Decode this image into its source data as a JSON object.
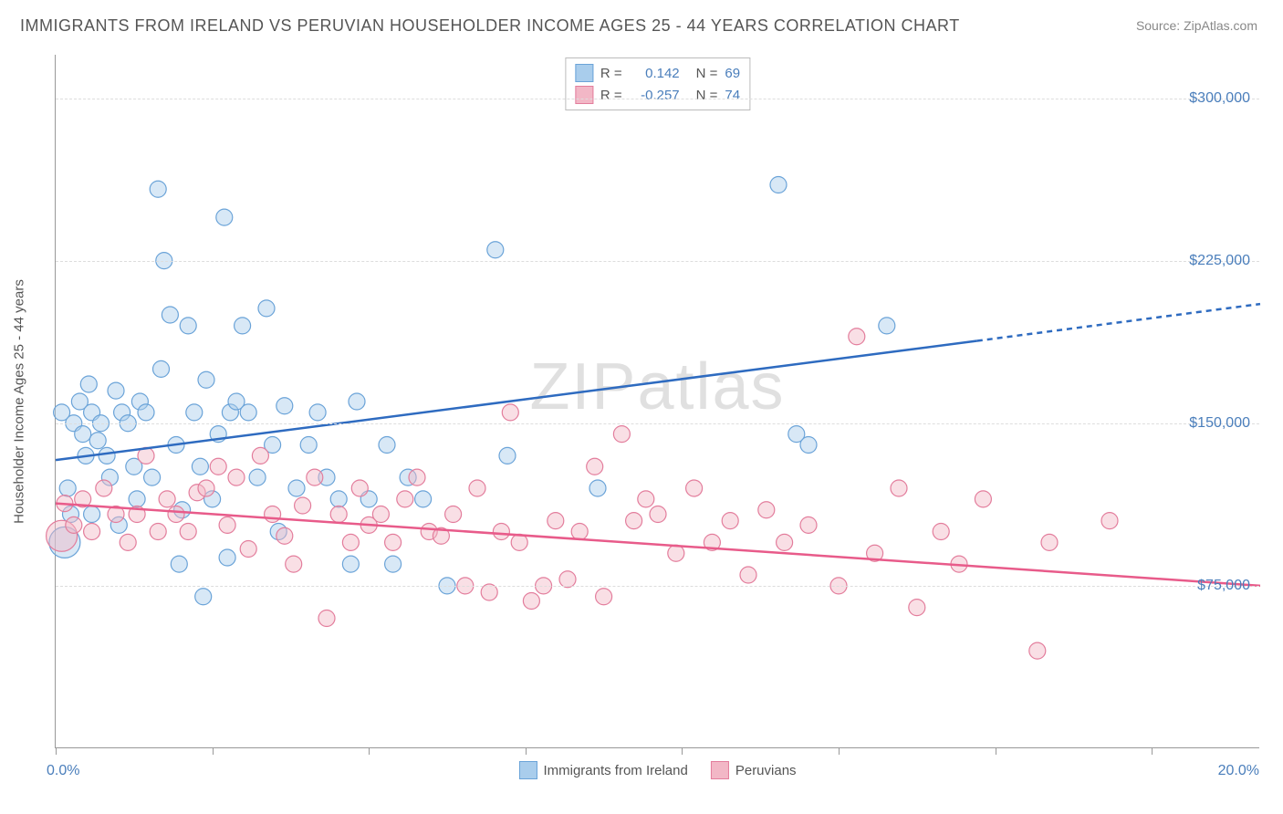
{
  "title": "IMMIGRANTS FROM IRELAND VS PERUVIAN HOUSEHOLDER INCOME AGES 25 - 44 YEARS CORRELATION CHART",
  "source": "Source: ZipAtlas.com",
  "watermark": "ZIPatlas",
  "y_axis_title": "Householder Income Ages 25 - 44 years",
  "chart": {
    "type": "scatter",
    "xlim": [
      0,
      20
    ],
    "ylim": [
      0,
      320000
    ],
    "x_tick_positions": [
      0,
      2.6,
      5.2,
      7.8,
      10.4,
      13.0,
      15.6,
      18.2
    ],
    "x_label_min": "0.0%",
    "x_label_max": "20.0%",
    "y_ticks": [
      {
        "v": 75000,
        "label": "$75,000"
      },
      {
        "v": 150000,
        "label": "$150,000"
      },
      {
        "v": 225000,
        "label": "$225,000"
      },
      {
        "v": 300000,
        "label": "$300,000"
      }
    ],
    "background_color": "#ffffff",
    "grid_color": "#dddddd",
    "marker_radius": 9,
    "marker_radius_large": 17,
    "series": [
      {
        "name": "Immigrants from Ireland",
        "color_fill": "#a9cdec",
        "color_stroke": "#6aa3d8",
        "fill_opacity": 0.45,
        "r_value": "0.142",
        "n_value": "69",
        "trend": {
          "x1": 0,
          "y1": 133000,
          "x2": 15.3,
          "y2": 188000,
          "x2_dash": 20,
          "y2_dash": 205000,
          "color": "#2e6bc0",
          "width": 2.5
        },
        "points": [
          [
            0.1,
            155000
          ],
          [
            0.15,
            95000,
            17
          ],
          [
            0.2,
            120000
          ],
          [
            0.25,
            108000
          ],
          [
            0.3,
            150000
          ],
          [
            0.4,
            160000
          ],
          [
            0.45,
            145000
          ],
          [
            0.5,
            135000
          ],
          [
            0.55,
            168000
          ],
          [
            0.6,
            155000
          ],
          [
            0.6,
            108000
          ],
          [
            0.7,
            142000
          ],
          [
            0.75,
            150000
          ],
          [
            0.85,
            135000
          ],
          [
            0.9,
            125000
          ],
          [
            1.0,
            165000
          ],
          [
            1.05,
            103000
          ],
          [
            1.1,
            155000
          ],
          [
            1.2,
            150000
          ],
          [
            1.3,
            130000
          ],
          [
            1.35,
            115000
          ],
          [
            1.4,
            160000
          ],
          [
            1.5,
            155000
          ],
          [
            1.6,
            125000
          ],
          [
            1.7,
            258000
          ],
          [
            1.75,
            175000
          ],
          [
            1.8,
            225000
          ],
          [
            1.9,
            200000
          ],
          [
            2.0,
            140000
          ],
          [
            2.05,
            85000
          ],
          [
            2.1,
            110000
          ],
          [
            2.2,
            195000
          ],
          [
            2.3,
            155000
          ],
          [
            2.4,
            130000
          ],
          [
            2.45,
            70000
          ],
          [
            2.5,
            170000
          ],
          [
            2.6,
            115000
          ],
          [
            2.7,
            145000
          ],
          [
            2.8,
            245000
          ],
          [
            2.85,
            88000
          ],
          [
            2.9,
            155000
          ],
          [
            3.0,
            160000
          ],
          [
            3.1,
            195000
          ],
          [
            3.2,
            155000
          ],
          [
            3.35,
            125000
          ],
          [
            3.5,
            203000
          ],
          [
            3.6,
            140000
          ],
          [
            3.7,
            100000
          ],
          [
            3.8,
            158000
          ],
          [
            4.0,
            120000
          ],
          [
            4.2,
            140000
          ],
          [
            4.35,
            155000
          ],
          [
            4.5,
            125000
          ],
          [
            4.7,
            115000
          ],
          [
            4.9,
            85000
          ],
          [
            5.0,
            160000
          ],
          [
            5.2,
            115000
          ],
          [
            5.5,
            140000
          ],
          [
            5.6,
            85000
          ],
          [
            5.85,
            125000
          ],
          [
            6.1,
            115000
          ],
          [
            6.5,
            75000
          ],
          [
            7.3,
            230000
          ],
          [
            7.5,
            135000
          ],
          [
            9.0,
            120000
          ],
          [
            12.0,
            260000
          ],
          [
            12.3,
            145000
          ],
          [
            12.5,
            140000
          ],
          [
            13.8,
            195000
          ]
        ]
      },
      {
        "name": "Peruvians",
        "color_fill": "#f2b7c6",
        "color_stroke": "#e37d9c",
        "fill_opacity": 0.45,
        "r_value": "-0.257",
        "n_value": "74",
        "trend": {
          "x1": 0,
          "y1": 113000,
          "x2": 20,
          "y2": 75000,
          "color": "#e85b8a",
          "width": 2.5
        },
        "points": [
          [
            0.1,
            98000,
            17
          ],
          [
            0.15,
            113000
          ],
          [
            0.3,
            103000
          ],
          [
            0.45,
            115000
          ],
          [
            0.6,
            100000
          ],
          [
            0.8,
            120000
          ],
          [
            1.0,
            108000
          ],
          [
            1.2,
            95000
          ],
          [
            1.35,
            108000
          ],
          [
            1.5,
            135000
          ],
          [
            1.7,
            100000
          ],
          [
            1.85,
            115000
          ],
          [
            2.0,
            108000
          ],
          [
            2.2,
            100000
          ],
          [
            2.35,
            118000
          ],
          [
            2.5,
            120000
          ],
          [
            2.7,
            130000
          ],
          [
            2.85,
            103000
          ],
          [
            3.0,
            125000
          ],
          [
            3.2,
            92000
          ],
          [
            3.4,
            135000
          ],
          [
            3.6,
            108000
          ],
          [
            3.8,
            98000
          ],
          [
            3.95,
            85000
          ],
          [
            4.1,
            112000
          ],
          [
            4.3,
            125000
          ],
          [
            4.5,
            60000
          ],
          [
            4.7,
            108000
          ],
          [
            4.9,
            95000
          ],
          [
            5.05,
            120000
          ],
          [
            5.2,
            103000
          ],
          [
            5.4,
            108000
          ],
          [
            5.6,
            95000
          ],
          [
            5.8,
            115000
          ],
          [
            6.0,
            125000
          ],
          [
            6.2,
            100000
          ],
          [
            6.4,
            98000
          ],
          [
            6.6,
            108000
          ],
          [
            6.8,
            75000
          ],
          [
            7.0,
            120000
          ],
          [
            7.2,
            72000
          ],
          [
            7.4,
            100000
          ],
          [
            7.55,
            155000
          ],
          [
            7.7,
            95000
          ],
          [
            7.9,
            68000
          ],
          [
            8.1,
            75000
          ],
          [
            8.3,
            105000
          ],
          [
            8.5,
            78000
          ],
          [
            8.7,
            100000
          ],
          [
            8.95,
            130000
          ],
          [
            9.1,
            70000
          ],
          [
            9.4,
            145000
          ],
          [
            9.6,
            105000
          ],
          [
            9.8,
            115000
          ],
          [
            10.0,
            108000
          ],
          [
            10.3,
            90000
          ],
          [
            10.6,
            120000
          ],
          [
            10.9,
            95000
          ],
          [
            11.2,
            105000
          ],
          [
            11.5,
            80000
          ],
          [
            11.8,
            110000
          ],
          [
            12.1,
            95000
          ],
          [
            12.5,
            103000
          ],
          [
            13.0,
            75000
          ],
          [
            13.3,
            190000
          ],
          [
            13.6,
            90000
          ],
          [
            14.0,
            120000
          ],
          [
            14.3,
            65000
          ],
          [
            14.7,
            100000
          ],
          [
            15.0,
            85000
          ],
          [
            15.4,
            115000
          ],
          [
            16.3,
            45000
          ],
          [
            16.5,
            95000
          ],
          [
            17.5,
            105000
          ]
        ]
      }
    ]
  },
  "legend_bottom": [
    {
      "label": "Immigrants from Ireland",
      "fill": "#a9cdec",
      "stroke": "#6aa3d8"
    },
    {
      "label": "Peruvians",
      "fill": "#f2b7c6",
      "stroke": "#e37d9c"
    }
  ]
}
